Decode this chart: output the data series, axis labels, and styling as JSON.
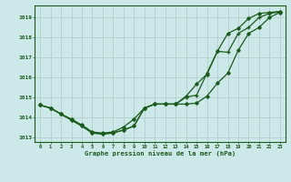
{
  "title": "Graphe pression niveau de la mer (hPa)",
  "background_color": "#cce8e8",
  "grid_color": "#b0c8c8",
  "line_color": "#1a5c1a",
  "ylim": [
    1012.75,
    1019.6
  ],
  "yticks": [
    1013,
    1014,
    1015,
    1016,
    1017,
    1018,
    1019
  ],
  "figsize": [
    3.2,
    2.0
  ],
  "dpi": 100,
  "s1_x": [
    0,
    1,
    2,
    3,
    4,
    5,
    6,
    7,
    8,
    9,
    10,
    11,
    12,
    13,
    14,
    15,
    16,
    17,
    18,
    19,
    20,
    21,
    22,
    23
  ],
  "s1_y": [
    1014.6,
    1014.45,
    1014.15,
    1013.85,
    1013.55,
    1013.2,
    1013.15,
    1013.2,
    1013.35,
    1013.55,
    1014.45,
    1014.65,
    1014.65,
    1014.65,
    1014.65,
    1014.7,
    1015.05,
    1015.7,
    1016.2,
    1017.35,
    1018.2,
    1018.5,
    1019.0,
    1019.25
  ],
  "s2_x": [
    0,
    1,
    2,
    3,
    4,
    5,
    6,
    7,
    8,
    9,
    10,
    11,
    12,
    13,
    14,
    15,
    16,
    17,
    18,
    19,
    20,
    21,
    22,
    23
  ],
  "s2_y": [
    1014.6,
    1014.45,
    1014.15,
    1013.85,
    1013.55,
    1013.2,
    1013.15,
    1013.2,
    1013.35,
    1013.55,
    1014.45,
    1014.65,
    1014.65,
    1014.65,
    1015.0,
    1015.1,
    1016.2,
    1017.3,
    1017.25,
    1018.2,
    1018.5,
    1019.0,
    1019.2,
    1019.28
  ],
  "s3_x": [
    0,
    1,
    2,
    3,
    4,
    5,
    6,
    7,
    8,
    9,
    10,
    11,
    12,
    13,
    14,
    15,
    16,
    17,
    18,
    19,
    20,
    21,
    22,
    23
  ],
  "s3_y": [
    1014.6,
    1014.45,
    1014.15,
    1013.9,
    1013.6,
    1013.25,
    1013.2,
    1013.25,
    1013.5,
    1013.9,
    1014.45,
    1014.65,
    1014.65,
    1014.65,
    1015.05,
    1015.65,
    1016.15,
    1017.3,
    1018.2,
    1018.45,
    1018.95,
    1019.2,
    1019.25,
    1019.3
  ]
}
